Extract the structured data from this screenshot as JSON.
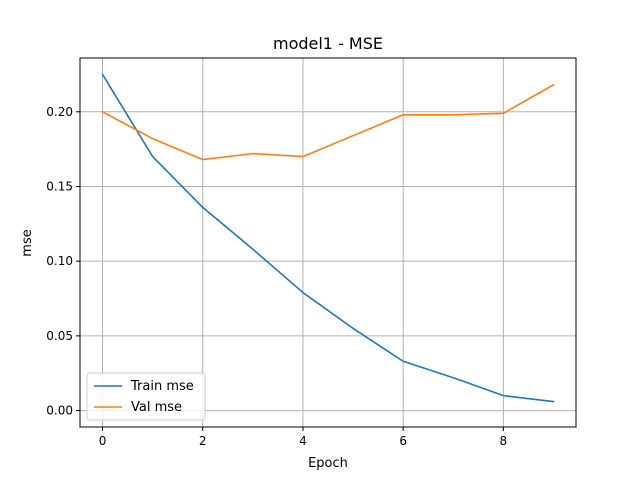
{
  "chart_data": {
    "type": "line",
    "title": "model1 - MSE",
    "xlabel": "Epoch",
    "ylabel": "mse",
    "x": [
      0,
      1,
      2,
      3,
      4,
      5,
      6,
      7,
      8,
      9
    ],
    "xlim": [
      -0.45,
      9.45
    ],
    "ylim": [
      -0.011,
      0.236
    ],
    "xticks": [
      0,
      2,
      4,
      6,
      8
    ],
    "yticks": [
      0.0,
      0.05,
      0.1,
      0.15,
      0.2
    ],
    "ytick_labels": [
      "0.00",
      "0.05",
      "0.10",
      "0.15",
      "0.20"
    ],
    "grid": true,
    "legend_position": "lower-left",
    "series": [
      {
        "name": "Train mse",
        "color": "#1f77b4",
        "values": [
          0.225,
          0.17,
          0.136,
          0.108,
          0.079,
          0.055,
          0.033,
          0.022,
          0.01,
          0.006
        ]
      },
      {
        "name": "Val mse",
        "color": "#ff7f0e",
        "values": [
          0.2,
          0.182,
          0.168,
          0.172,
          0.17,
          0.184,
          0.198,
          0.198,
          0.199,
          0.218
        ]
      }
    ]
  }
}
